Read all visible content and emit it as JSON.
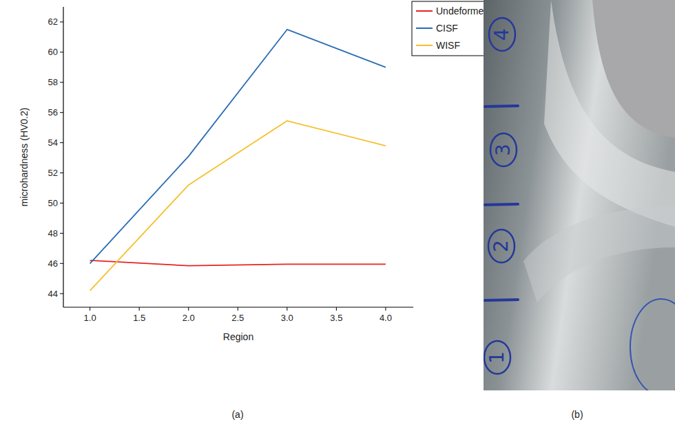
{
  "chart_data": {
    "type": "line",
    "x_label": "Region",
    "y_label": "microhardness (HV0.2)",
    "x": [
      1,
      2,
      3,
      4
    ],
    "series": [
      {
        "name": "Undeformed",
        "color": "#e8231f",
        "values": [
          46.2,
          45.85,
          45.95,
          45.95
        ]
      },
      {
        "name": "CISF",
        "color": "#2a6db3",
        "values": [
          46.0,
          53.1,
          61.5,
          59.0
        ]
      },
      {
        "name": "WISF",
        "color": "#f6bf2c",
        "values": [
          44.2,
          51.2,
          55.45,
          53.8
        ]
      }
    ],
    "xlim": [
      0.73,
      4.28
    ],
    "xticks": [
      {
        "value": 1,
        "label": "1.0"
      },
      {
        "value": 1.5,
        "label": "1.5"
      },
      {
        "value": 2,
        "label": "2.0"
      },
      {
        "value": 2.5,
        "label": "2.5"
      },
      {
        "value": 3,
        "label": "3.0"
      },
      {
        "value": 3.5,
        "label": "3.5"
      },
      {
        "value": 4,
        "label": "4.0"
      }
    ],
    "ylim": [
      43.1,
      63
    ],
    "yticks": [
      44,
      46,
      48,
      50,
      52,
      54,
      56,
      58,
      60,
      62
    ],
    "grid": false,
    "legend": "upper right"
  },
  "captions": [
    "(a)",
    "(b)"
  ],
  "photo": {
    "region_labels": [
      "1",
      "2",
      "3",
      "4"
    ]
  }
}
